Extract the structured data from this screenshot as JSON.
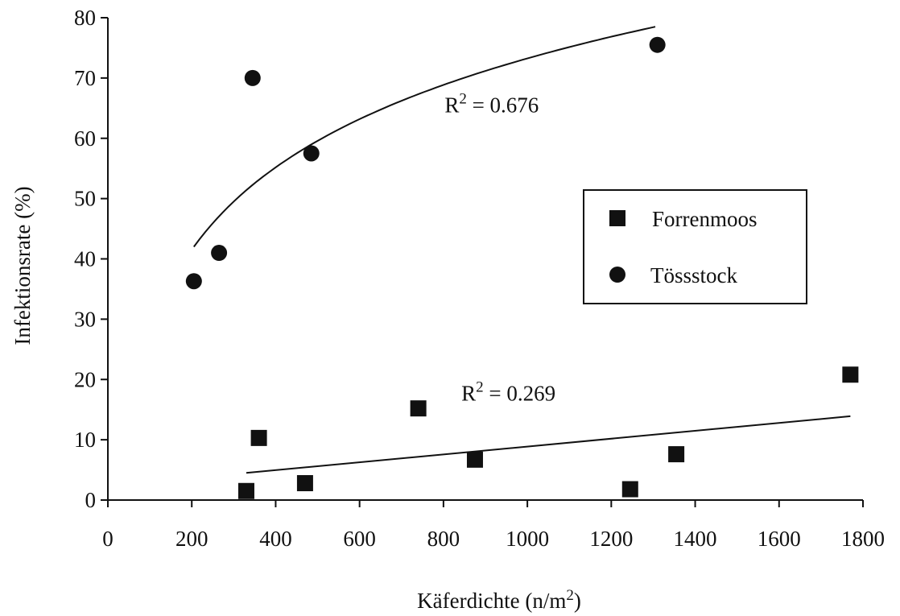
{
  "chart_data": {
    "type": "scatter",
    "xlabel": {
      "main": "Käferdichte (n/m",
      "sup": "2",
      "end": ")"
    },
    "ylabel": "Infektionsrate (%)",
    "xlim": [
      0,
      1800
    ],
    "ylim": [
      0,
      80
    ],
    "xticks": [
      0,
      200,
      400,
      600,
      800,
      1000,
      1200,
      1400,
      1600,
      1800
    ],
    "yticks": [
      0,
      10,
      20,
      30,
      40,
      50,
      60,
      70,
      80
    ],
    "legend_position": "right-center",
    "series": [
      {
        "name": "Forrenmoos",
        "marker": "square",
        "points": [
          {
            "x": 330,
            "y": 1.5
          },
          {
            "x": 360,
            "y": 10.3
          },
          {
            "x": 470,
            "y": 2.8
          },
          {
            "x": 740,
            "y": 15.2
          },
          {
            "x": 875,
            "y": 6.7
          },
          {
            "x": 1245,
            "y": 1.8
          },
          {
            "x": 1355,
            "y": 7.6
          },
          {
            "x": 1770,
            "y": 20.8
          }
        ],
        "fit": {
          "kind": "linear",
          "x_range": [
            330,
            1770
          ],
          "y_start": 4.5,
          "y_end": 13.9
        },
        "annotation": {
          "label": "R",
          "sup": "2",
          "value": " = 0.269",
          "x": 955,
          "y": 16.5
        }
      },
      {
        "name": "Tössstock",
        "marker": "circle",
        "points": [
          {
            "x": 205,
            "y": 36.3
          },
          {
            "x": 265,
            "y": 41.0
          },
          {
            "x": 345,
            "y": 70.0
          },
          {
            "x": 485,
            "y": 57.5
          },
          {
            "x": 1310,
            "y": 75.5
          }
        ],
        "fit": {
          "kind": "logarithmic",
          "x_range": [
            205,
            1305
          ],
          "y_start": 42.0,
          "y_end": 78.5
        },
        "annotation": {
          "label": "R",
          "sup": "2",
          "value": " = 0.676",
          "x": 915,
          "y": 64.3
        }
      }
    ]
  }
}
